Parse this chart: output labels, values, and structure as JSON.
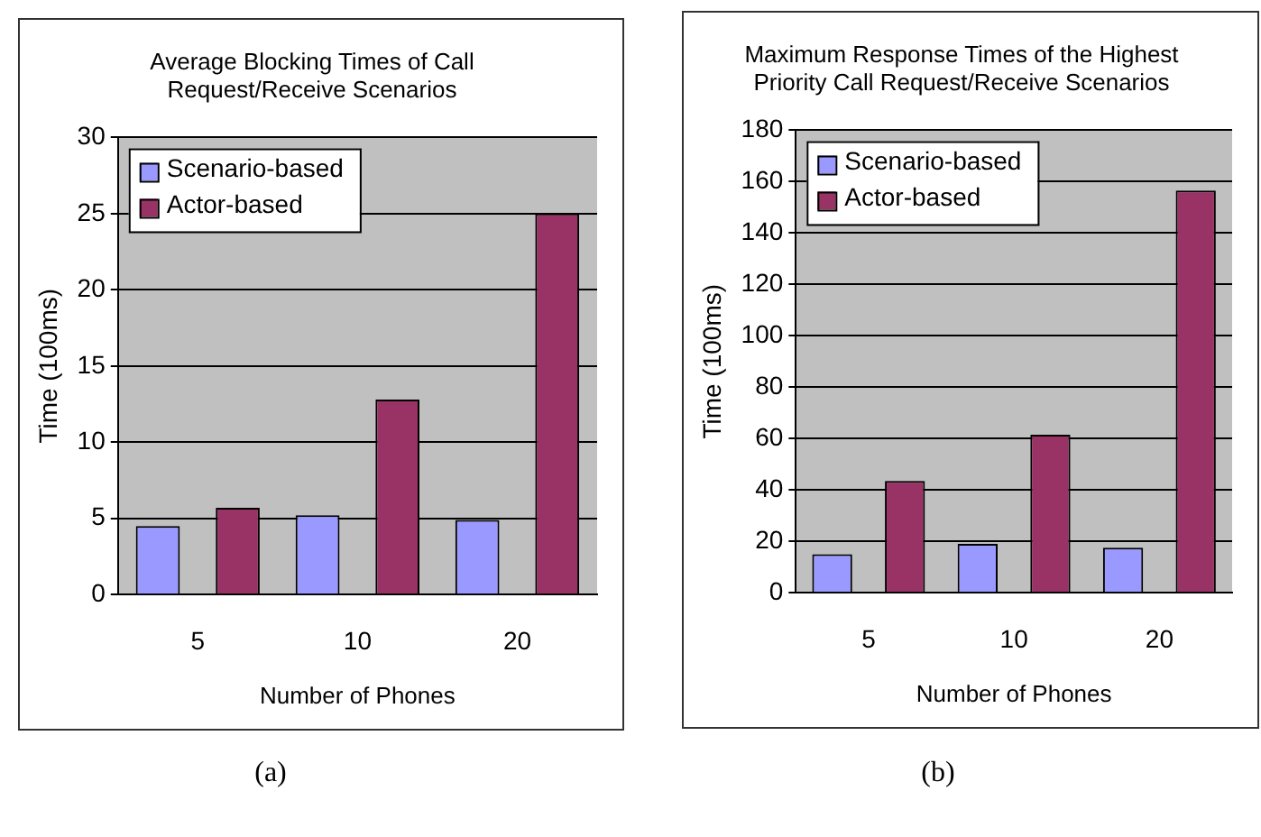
{
  "chart_data": [
    {
      "type": "bar",
      "title": "Average Blocking Times of Call Request/Receive Scenarios",
      "xlabel": "Number of Phones",
      "ylabel": "Time (100ms)",
      "categories": [
        "5",
        "10",
        "20"
      ],
      "series": [
        {
          "name": "Scenario-based",
          "color": "#9999ff",
          "values": [
            4.5,
            5.2,
            4.9
          ]
        },
        {
          "name": "Actor-based",
          "color": "#993366",
          "values": [
            5.7,
            12.8,
            25
          ]
        }
      ],
      "ylim": [
        0,
        30
      ],
      "yticks": [
        0,
        5,
        10,
        15,
        20,
        25,
        30
      ],
      "grid": "y",
      "legend": "top left",
      "annotations": [
        "(a)"
      ]
    },
    {
      "type": "bar",
      "title": "Maximum Response Times of the Highest Priority Call Request/Receive Scenarios",
      "xlabel": "Number of Phones",
      "ylabel": "Time (100ms)",
      "categories": [
        "5",
        "10",
        "20"
      ],
      "series": [
        {
          "name": "Scenario-based",
          "color": "#9999ff",
          "values": [
            15,
            19,
            17.5
          ]
        },
        {
          "name": "Actor-based",
          "color": "#993366",
          "values": [
            43.5,
            61.5,
            156.5
          ]
        }
      ],
      "ylim": [
        0,
        180
      ],
      "yticks": [
        0,
        20,
        40,
        60,
        80,
        100,
        120,
        140,
        160,
        180
      ],
      "grid": "y",
      "legend": "top left",
      "annotations": [
        "(b)"
      ]
    }
  ]
}
